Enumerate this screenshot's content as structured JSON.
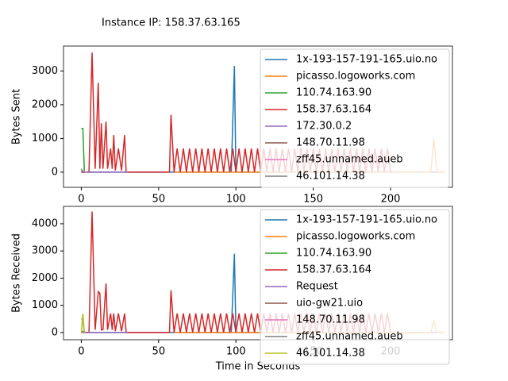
{
  "chart_data": [
    {
      "type": "line",
      "title": "Instance IP: 158.37.63.165",
      "ylabel": "Bytes Sent",
      "xlim": [
        -11.5,
        240
      ],
      "ylim": [
        -450,
        3740
      ],
      "xticks": [
        0,
        50,
        100,
        150,
        200
      ],
      "yticks": [
        0,
        1000,
        2000,
        3000
      ],
      "legend": "upper right",
      "series": [
        {
          "name": "1x-193-157-191-165.uio.no",
          "color": "#1f77b4",
          "x": [
            0,
            97,
            99,
            100,
            235
          ],
          "values": [
            0,
            0,
            3150,
            0,
            0
          ]
        },
        {
          "name": "picasso.logoworks.com",
          "color": "#ff7f0e",
          "x": [
            60,
            226,
            228,
            230,
            235
          ],
          "values": [
            0,
            0,
            1000,
            0,
            0
          ]
        },
        {
          "name": "110.74.163.90",
          "color": "#2ca02c",
          "x": [
            0,
            1,
            2
          ],
          "values": [
            1300,
            1300,
            0
          ]
        },
        {
          "name": "158.37.63.164",
          "color": "#d62728",
          "x": [
            0,
            5,
            7,
            9,
            11,
            12,
            13,
            14,
            16,
            17,
            19,
            20,
            21,
            22,
            24,
            26,
            28,
            29,
            57,
            58,
            60,
            62,
            64,
            66,
            68,
            70,
            72,
            74,
            76,
            78,
            80,
            82,
            84,
            86,
            88,
            90,
            92,
            94,
            96,
            98,
            100,
            102,
            104,
            106,
            108,
            110,
            112,
            114,
            116,
            118,
            120,
            122,
            124,
            126,
            128,
            130,
            132,
            134,
            136,
            138,
            140,
            142,
            144,
            146,
            148,
            150,
            152,
            154,
            156,
            158,
            160,
            162,
            164,
            166,
            168,
            170,
            172,
            174,
            176,
            178,
            180,
            182,
            184,
            186,
            188,
            190,
            192,
            194,
            196,
            198,
            200
          ],
          "values": [
            0,
            0,
            3550,
            100,
            2650,
            100,
            1450,
            100,
            1500,
            100,
            700,
            100,
            1100,
            50,
            700,
            50,
            1100,
            0,
            0,
            1700,
            0,
            700,
            0,
            700,
            0,
            700,
            0,
            700,
            0,
            700,
            0,
            700,
            0,
            700,
            0,
            700,
            0,
            700,
            0,
            700,
            0,
            700,
            0,
            700,
            0,
            700,
            0,
            700,
            0,
            700,
            0,
            700,
            0,
            700,
            0,
            700,
            0,
            700,
            0,
            700,
            0,
            700,
            0,
            700,
            0,
            700,
            0,
            700,
            0,
            700,
            0,
            700,
            0,
            700,
            0,
            700,
            0,
            700,
            0,
            700,
            0,
            700,
            0,
            700,
            0,
            700,
            0,
            700,
            0,
            700,
            0
          ]
        },
        {
          "name": "172.30.0.2",
          "color": "#9467bd",
          "x": [
            0,
            30
          ],
          "values": [
            0,
            0
          ]
        },
        {
          "name": "148.70.11.98",
          "color": "#8c564b",
          "x": [
            0,
            2
          ],
          "values": [
            0,
            0
          ]
        },
        {
          "name": "zff45.unnamed.aueb",
          "color": "#e377c2",
          "x": [
            0,
            3
          ],
          "values": [
            50,
            0
          ]
        },
        {
          "name": "46.101.14.38",
          "color": "#7f7f7f",
          "x": [
            0,
            1
          ],
          "values": [
            100,
            0
          ]
        }
      ]
    },
    {
      "type": "line",
      "ylabel": "Bytes Received",
      "xlabel": "Time in Seconds",
      "xlim": [
        -11.5,
        240
      ],
      "ylim": [
        -265,
        4640
      ],
      "xticks": [
        0,
        50,
        100,
        150,
        200
      ],
      "yticks": [
        0,
        1000,
        2000,
        3000,
        4000
      ],
      "legend": "upper right",
      "series": [
        {
          "name": "1x-193-157-191-165.uio.no",
          "color": "#1f77b4",
          "x": [
            0,
            97,
            99,
            100,
            235
          ],
          "values": [
            0,
            0,
            2900,
            0,
            0
          ]
        },
        {
          "name": "picasso.logoworks.com",
          "color": "#ff7f0e",
          "x": [
            60,
            226,
            228,
            230,
            235
          ],
          "values": [
            0,
            0,
            450,
            0,
            0
          ]
        },
        {
          "name": "110.74.163.90",
          "color": "#2ca02c",
          "x": [
            0,
            1,
            2
          ],
          "values": [
            500,
            500,
            0
          ]
        },
        {
          "name": "158.37.63.164",
          "color": "#d62728",
          "x": [
            0,
            5,
            7,
            9,
            11,
            12,
            13,
            14,
            16,
            17,
            19,
            20,
            21,
            22,
            24,
            26,
            28,
            29,
            57,
            58,
            60,
            62,
            64,
            66,
            68,
            70,
            72,
            74,
            76,
            78,
            80,
            82,
            84,
            86,
            88,
            90,
            92,
            94,
            96,
            98,
            100,
            102,
            104,
            106,
            108,
            110,
            112,
            114,
            116,
            118,
            120,
            122,
            124,
            126,
            128,
            130,
            132,
            134,
            136,
            138,
            140,
            142,
            144,
            146,
            148,
            150,
            152,
            154,
            156,
            158,
            160,
            162,
            164,
            166,
            168,
            170,
            172,
            174,
            176,
            178,
            180,
            182,
            184,
            186,
            188,
            190,
            192,
            194,
            196,
            198,
            200
          ],
          "values": [
            0,
            0,
            4450,
            100,
            1500,
            1450,
            100,
            100,
            1800,
            100,
            700,
            100,
            700,
            50,
            700,
            50,
            700,
            0,
            0,
            1550,
            0,
            700,
            0,
            700,
            0,
            700,
            0,
            700,
            0,
            700,
            0,
            700,
            0,
            700,
            0,
            700,
            0,
            700,
            0,
            700,
            0,
            700,
            0,
            700,
            0,
            700,
            0,
            700,
            0,
            700,
            0,
            700,
            0,
            700,
            0,
            700,
            0,
            700,
            0,
            700,
            0,
            700,
            0,
            700,
            0,
            700,
            0,
            700,
            0,
            700,
            0,
            700,
            0,
            700,
            0,
            700,
            0,
            700,
            0,
            700,
            0,
            700,
            0,
            700,
            0,
            700,
            0,
            700,
            0,
            700,
            0
          ]
        },
        {
          "name": "Request",
          "color": "#9467bd",
          "x": [
            0,
            30
          ],
          "values": [
            0,
            0
          ]
        },
        {
          "name": "uio-gw21.uio",
          "color": "#8c564b",
          "x": [
            0,
            2
          ],
          "values": [
            0,
            0
          ]
        },
        {
          "name": "148.70.11.98",
          "color": "#e377c2",
          "x": [
            0,
            2
          ],
          "values": [
            0,
            0
          ]
        },
        {
          "name": "zff45.unnamed.aueb",
          "color": "#7f7f7f",
          "x": [
            0,
            3
          ],
          "values": [
            50,
            0
          ]
        },
        {
          "name": "46.101.14.38",
          "color": "#bcbd22",
          "x": [
            0,
            1,
            2
          ],
          "values": [
            0,
            700,
            0
          ]
        }
      ]
    }
  ]
}
